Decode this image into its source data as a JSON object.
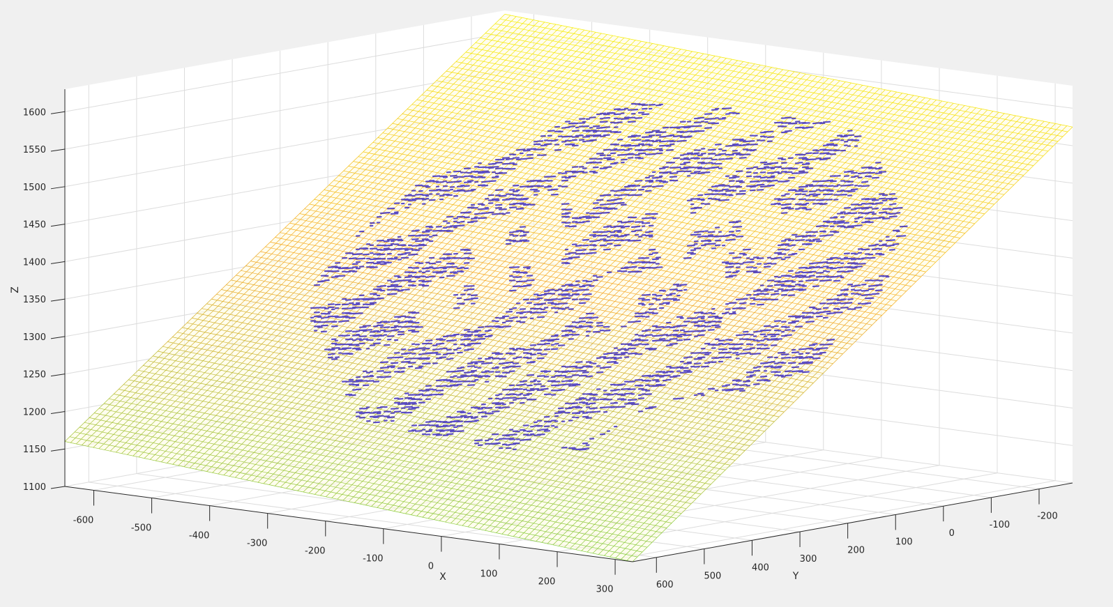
{
  "chart_data": {
    "type": "surface3d",
    "title": "",
    "xlabel": "X",
    "ylabel": "Y",
    "zlabel": "Z",
    "xlim": [
      -650,
      330
    ],
    "ylim": [
      -270,
      650
    ],
    "zlim": [
      1100,
      1630
    ],
    "x_ticks": [
      -600,
      -500,
      -400,
      -300,
      -200,
      -100,
      0,
      100,
      200,
      300
    ],
    "y_ticks": [
      600,
      500,
      400,
      300,
      200,
      100,
      0,
      -100,
      -200
    ],
    "z_ticks": [
      1100,
      1150,
      1200,
      1250,
      1300,
      1350,
      1400,
      1450,
      1500,
      1550,
      1600
    ],
    "x_tick_labels": [
      "-600",
      "-500",
      "-400",
      "-300",
      "-200",
      "-100",
      "0",
      "100",
      "200",
      "300"
    ],
    "y_tick_labels": [
      "600",
      "500",
      "400",
      "300",
      "200",
      "100",
      "0",
      "-100",
      "-200"
    ],
    "z_tick_labels": [
      "1100",
      "1150",
      "1200",
      "1250",
      "1300",
      "1350",
      "1400",
      "1450",
      "1500",
      "1550",
      "1600"
    ],
    "grid": true,
    "series": [
      {
        "kind": "plane_mesh",
        "corners_xyz": [
          [
            -650,
            650,
            1160
          ],
          [
            330,
            650,
            1100
          ],
          [
            330,
            -270,
            1575
          ],
          [
            -650,
            -270,
            1625
          ]
        ],
        "colormap": "parula",
        "edge_color_low": "#7fcf3f",
        "edge_color_mid": "#f5a623",
        "edge_color_high": "#f5f000"
      },
      {
        "kind": "point_cloud",
        "color": "#3f2fbf",
        "shape": "oval_with_ridges",
        "x_range": [
          -460,
          160
        ],
        "y_range": [
          -140,
          520
        ],
        "z_range": [
          1150,
          1630
        ]
      }
    ]
  }
}
